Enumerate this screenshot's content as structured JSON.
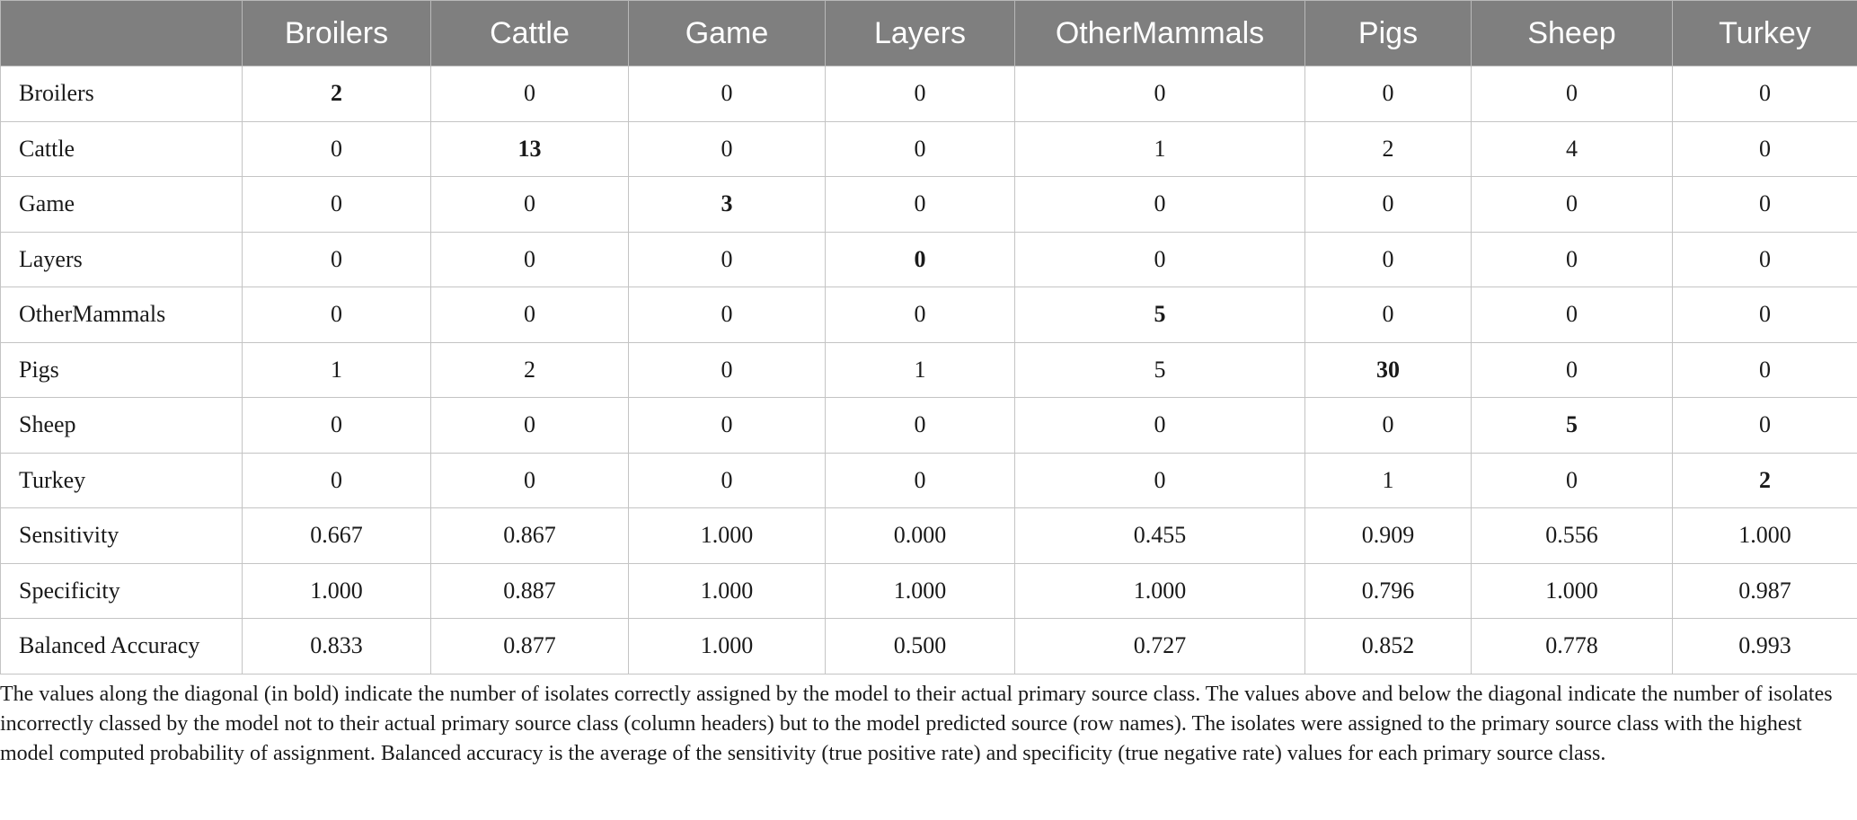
{
  "table": {
    "corner_label": "",
    "columns": [
      "Broilers",
      "Cattle",
      "Game",
      "Layers",
      "OtherMammals",
      "Pigs",
      "Sheep",
      "Turkey"
    ],
    "rows": [
      {
        "name": "Broilers",
        "values": [
          "2",
          "0",
          "0",
          "0",
          "0",
          "0",
          "0",
          "0"
        ],
        "bold_index": 0
      },
      {
        "name": "Cattle",
        "values": [
          "0",
          "13",
          "0",
          "0",
          "1",
          "2",
          "4",
          "0"
        ],
        "bold_index": 1
      },
      {
        "name": "Game",
        "values": [
          "0",
          "0",
          "3",
          "0",
          "0",
          "0",
          "0",
          "0"
        ],
        "bold_index": 2
      },
      {
        "name": "Layers",
        "values": [
          "0",
          "0",
          "0",
          "0",
          "0",
          "0",
          "0",
          "0"
        ],
        "bold_index": 3
      },
      {
        "name": "OtherMammals",
        "values": [
          "0",
          "0",
          "0",
          "0",
          "5",
          "0",
          "0",
          "0"
        ],
        "bold_index": 4
      },
      {
        "name": "Pigs",
        "values": [
          "1",
          "2",
          "0",
          "1",
          "5",
          "30",
          "0",
          "0"
        ],
        "bold_index": 5
      },
      {
        "name": "Sheep",
        "values": [
          "0",
          "0",
          "0",
          "0",
          "0",
          "0",
          "5",
          "0"
        ],
        "bold_index": 6
      },
      {
        "name": "Turkey",
        "values": [
          "0",
          "0",
          "0",
          "0",
          "0",
          "1",
          "0",
          "2"
        ],
        "bold_index": 7
      },
      {
        "name": "Sensitivity",
        "values": [
          "0.667",
          "0.867",
          "1.000",
          "0.000",
          "0.455",
          "0.909",
          "0.556",
          "1.000"
        ],
        "bold_index": -1
      },
      {
        "name": "Specificity",
        "values": [
          "1.000",
          "0.887",
          "1.000",
          "1.000",
          "1.000",
          "0.796",
          "1.000",
          "0.987"
        ],
        "bold_index": -1
      },
      {
        "name": "Balanced Accuracy",
        "values": [
          "0.833",
          "0.877",
          "1.000",
          "0.500",
          "0.727",
          "0.852",
          "0.778",
          "0.993"
        ],
        "bold_index": -1
      }
    ]
  },
  "footnote": "The values along the diagonal (in bold) indicate the number of isolates correctly assigned by the model to their actual primary source class. The values above and below the diagonal indicate the number of isolates incorrectly classed by the model not to their actual primary source class (column headers) but to the model predicted source (row names). The isolates were assigned to the primary source class with the highest model computed probability of assignment. Balanced accuracy is the average of the sensitivity (true positive rate) and specificity (true negative rate) values for each primary source class."
}
